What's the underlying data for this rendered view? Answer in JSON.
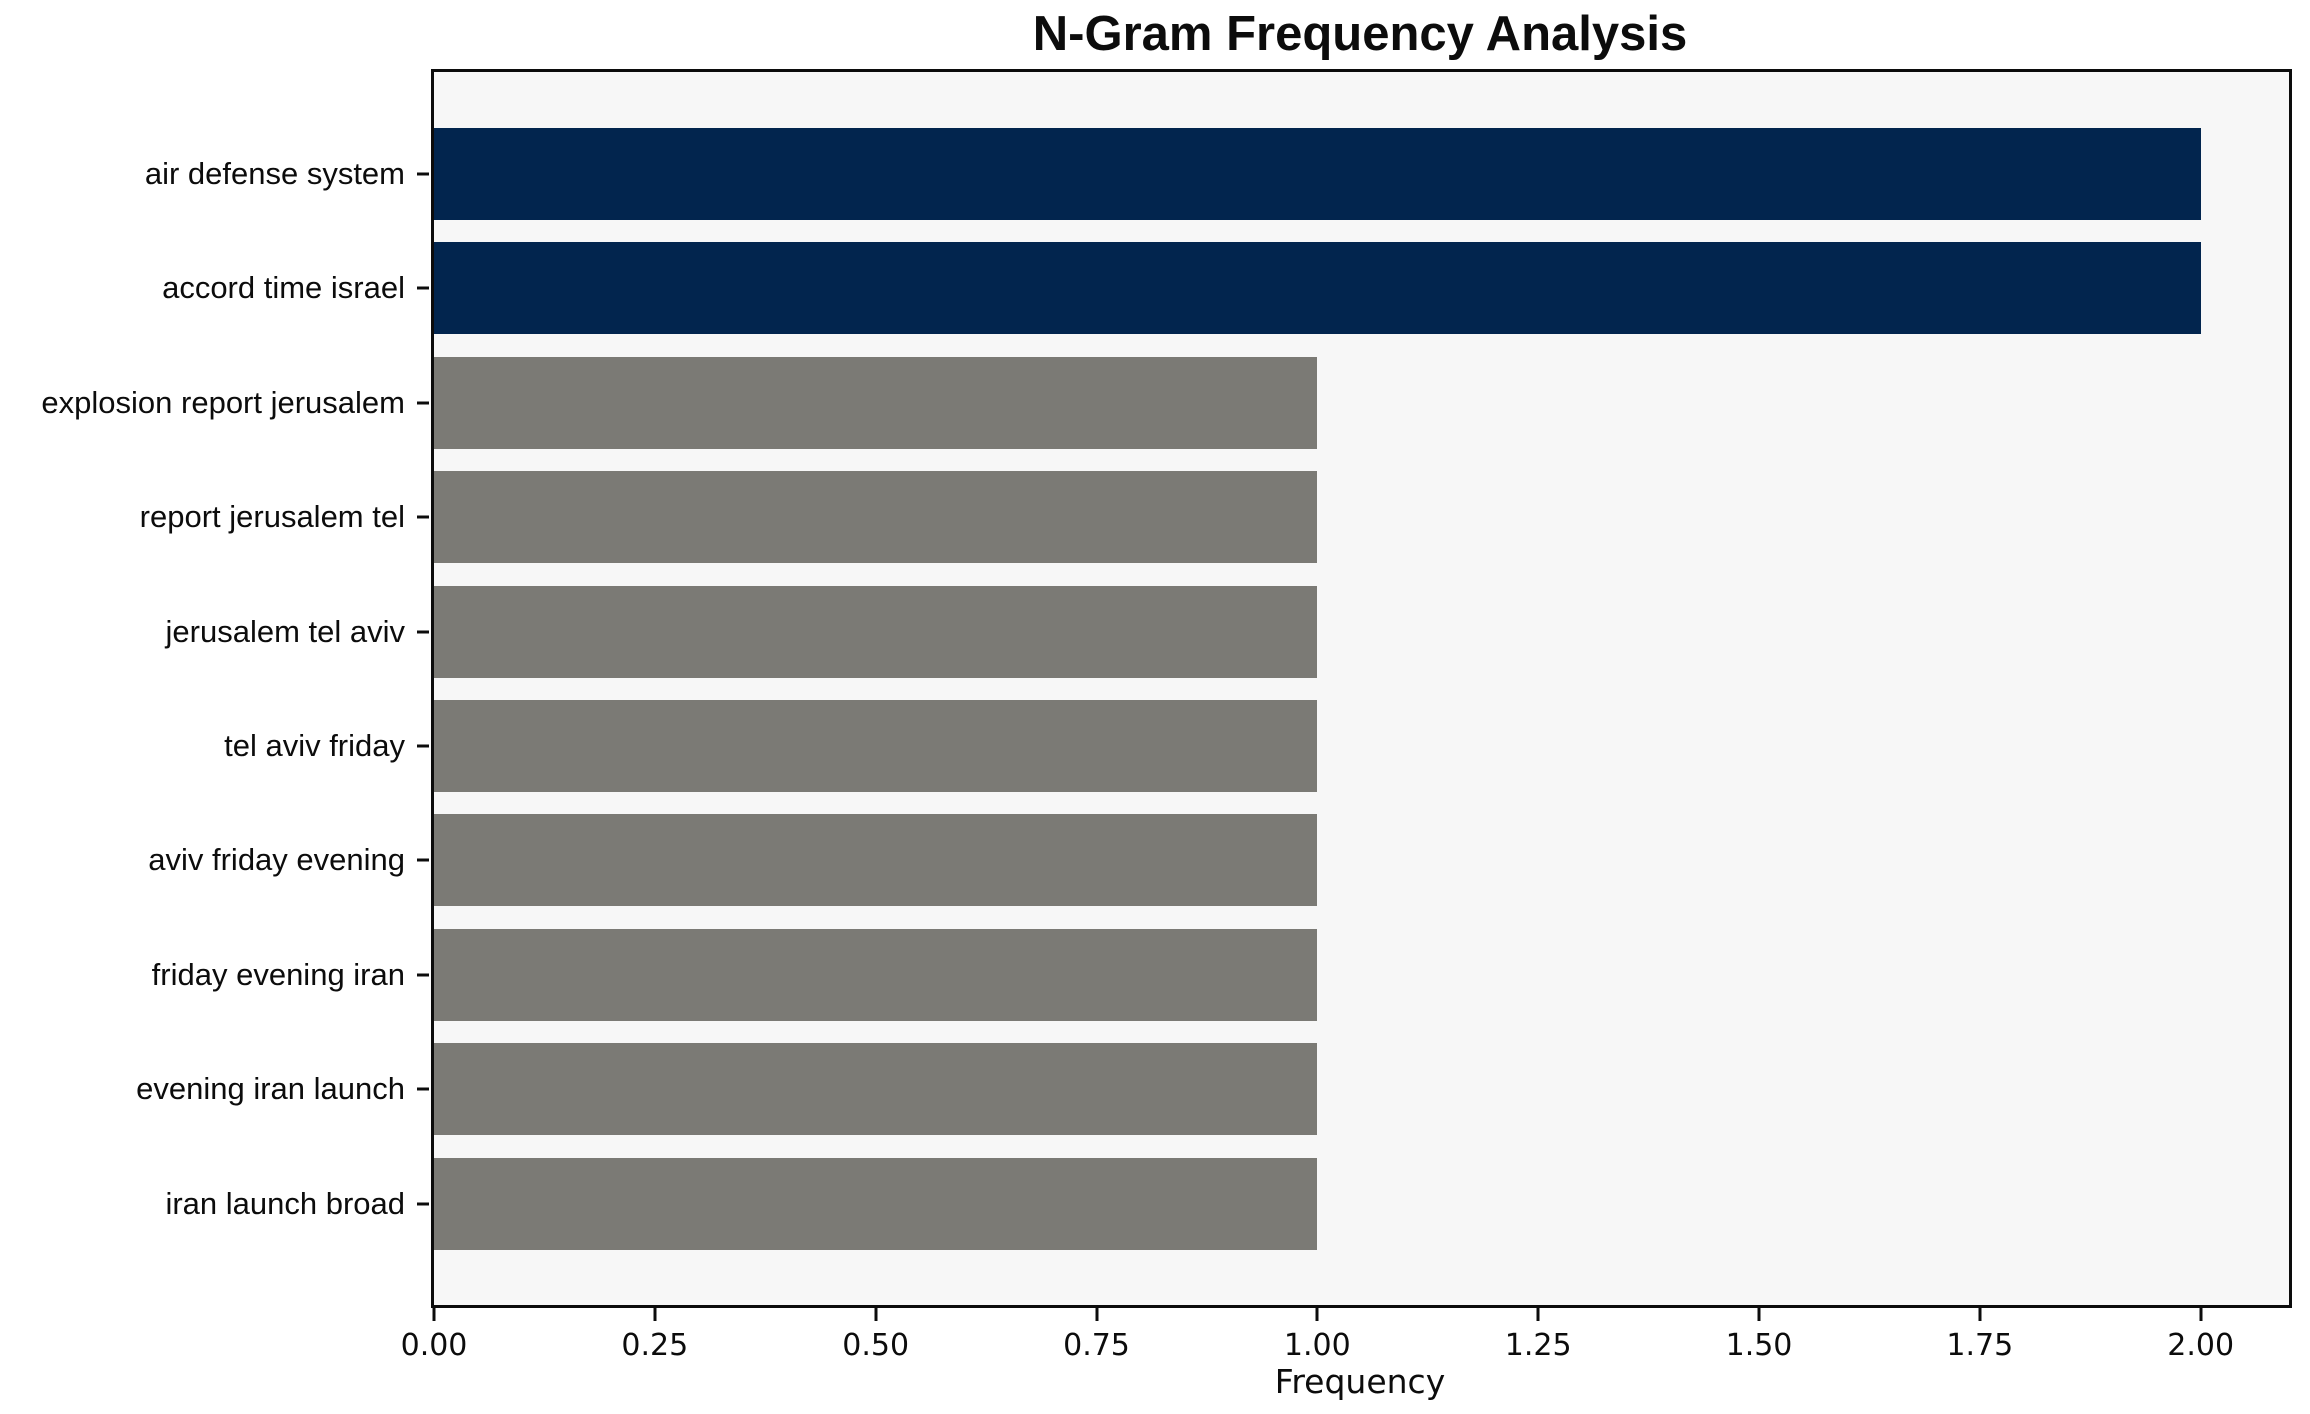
{
  "chart_data": {
    "type": "bar",
    "orientation": "horizontal",
    "title": "N-Gram Frequency Analysis",
    "xlabel": "Frequency",
    "ylabel": "",
    "categories": [
      "air defense system",
      "accord time israel",
      "explosion report jerusalem",
      "report jerusalem tel",
      "jerusalem tel aviv",
      "tel aviv friday",
      "aviv friday evening",
      "friday evening iran",
      "evening iran launch",
      "iran launch broad"
    ],
    "values": [
      2,
      2,
      1,
      1,
      1,
      1,
      1,
      1,
      1,
      1
    ],
    "bar_colors": [
      "#02254e",
      "#02254e",
      "#7b7a75",
      "#7b7a75",
      "#7b7a75",
      "#7b7a75",
      "#7b7a75",
      "#7b7a75",
      "#7b7a75",
      "#7b7a75"
    ],
    "xlim": [
      0,
      2.1
    ],
    "xticks": [
      0,
      0.25,
      0.5,
      0.75,
      1,
      1.25,
      1.5,
      1.75,
      2
    ],
    "xtick_labels": [
      "0.00",
      "0.25",
      "0.50",
      "0.75",
      "1.00",
      "1.25",
      "1.50",
      "1.75",
      "2.00"
    ],
    "grid": false,
    "legend_position": "none",
    "colors": {
      "highlight": "#02254e",
      "default_bar": "#7b7a75",
      "plot_background": "#f7f7f7",
      "figure_background": "#ffffff",
      "spine": "#0c0c0c",
      "text": "#0c0c0c"
    }
  }
}
